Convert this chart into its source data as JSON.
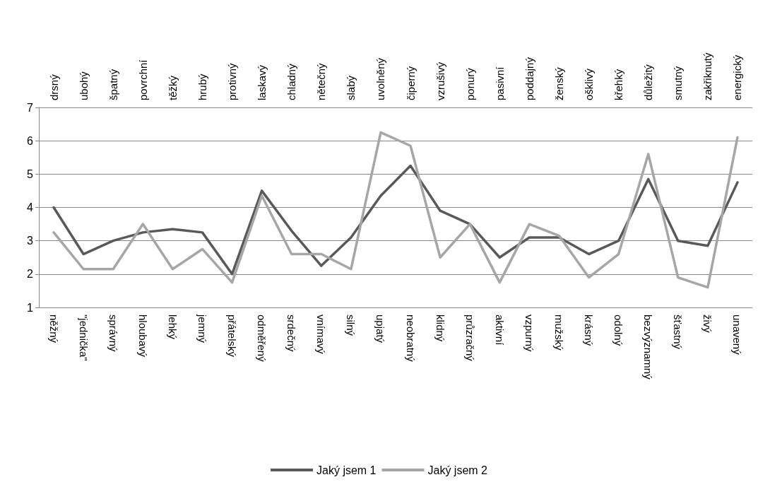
{
  "chart_data": {
    "type": "line",
    "categories": [
      "něžný",
      "\"jednička\"",
      "správný",
      "hloubavý",
      "lehký",
      "jemný",
      "přátelský",
      "odměřený",
      "srdečný",
      "vnímavý",
      "silný",
      "upjatý",
      "neobratný",
      "klidný",
      "průzračný",
      "aktivní",
      "vzpurný",
      "mužský",
      "krásný",
      "odolný",
      "bezvýznamný",
      "šťastný",
      "živý",
      "unavený"
    ],
    "annotations": [
      "drsný",
      "ubohý",
      "špatný",
      "povrchní",
      "těžký",
      "hrubý",
      "protivný",
      "laskavý",
      "chladný",
      "nětečný",
      "slabý",
      "uvolněný",
      "čiperný",
      "vzrušivý",
      "ponurý",
      "pasivní",
      "poddajný",
      "ženský",
      "ošklivý",
      "křehký",
      "důležitý",
      "smutný",
      "zakřiknutý",
      "energický"
    ],
    "series": [
      {
        "name": "Jaký jsem 1",
        "color": "#595959",
        "values": [
          4.0,
          2.6,
          3.0,
          3.25,
          3.35,
          3.25,
          2.0,
          4.5,
          3.3,
          2.25,
          3.1,
          4.35,
          5.25,
          3.9,
          3.5,
          2.5,
          3.1,
          3.1,
          2.6,
          3.0,
          4.85,
          3.0,
          2.85,
          4.75
        ]
      },
      {
        "name": "Jaký jsem 2",
        "color": "#a6a6a6",
        "values": [
          3.25,
          2.15,
          2.15,
          3.5,
          2.15,
          2.75,
          1.75,
          4.35,
          2.6,
          2.6,
          2.15,
          6.25,
          5.85,
          2.5,
          3.5,
          1.75,
          3.5,
          3.15,
          1.9,
          2.6,
          5.6,
          1.9,
          1.6,
          6.1
        ]
      }
    ],
    "ylim": [
      1,
      7
    ],
    "yticks": [
      1,
      2,
      3,
      4,
      5,
      6,
      7
    ],
    "grid": "y",
    "legend": "bottom",
    "marker": "none",
    "line_style": "solid"
  }
}
